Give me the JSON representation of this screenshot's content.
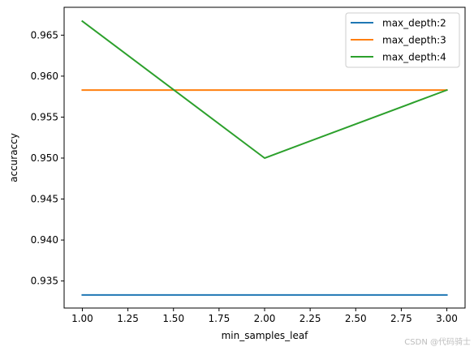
{
  "chart_data": {
    "type": "line",
    "title": "",
    "xlabel": "min_samples_leaf",
    "ylabel": "accuraccy",
    "x": [
      1,
      2,
      3
    ],
    "xlim": [
      0.9,
      3.1
    ],
    "ylim": [
      0.9317,
      0.9684
    ],
    "xticks": [
      1.0,
      1.25,
      1.5,
      1.75,
      2.0,
      2.25,
      2.5,
      2.75,
      3.0
    ],
    "xtick_labels": [
      "1.00",
      "1.25",
      "1.50",
      "1.75",
      "2.00",
      "2.25",
      "2.50",
      "2.75",
      "3.00"
    ],
    "yticks": [
      0.935,
      0.94,
      0.945,
      0.95,
      0.955,
      0.96,
      0.965
    ],
    "ytick_labels": [
      "0.935",
      "0.940",
      "0.945",
      "0.950",
      "0.955",
      "0.960",
      "0.965"
    ],
    "grid": false,
    "legend_position": "top-right",
    "series": [
      {
        "name": "max_depth:2",
        "color": "#1f77b4",
        "values": [
          0.9333,
          0.9333,
          0.9333
        ]
      },
      {
        "name": "max_depth:3",
        "color": "#ff7f0e",
        "values": [
          0.9583,
          0.9583,
          0.9583
        ]
      },
      {
        "name": "max_depth:4",
        "color": "#2ca02c",
        "values": [
          0.9667,
          0.95,
          0.9583
        ]
      }
    ]
  },
  "watermark": "CSDN @代码骑士"
}
